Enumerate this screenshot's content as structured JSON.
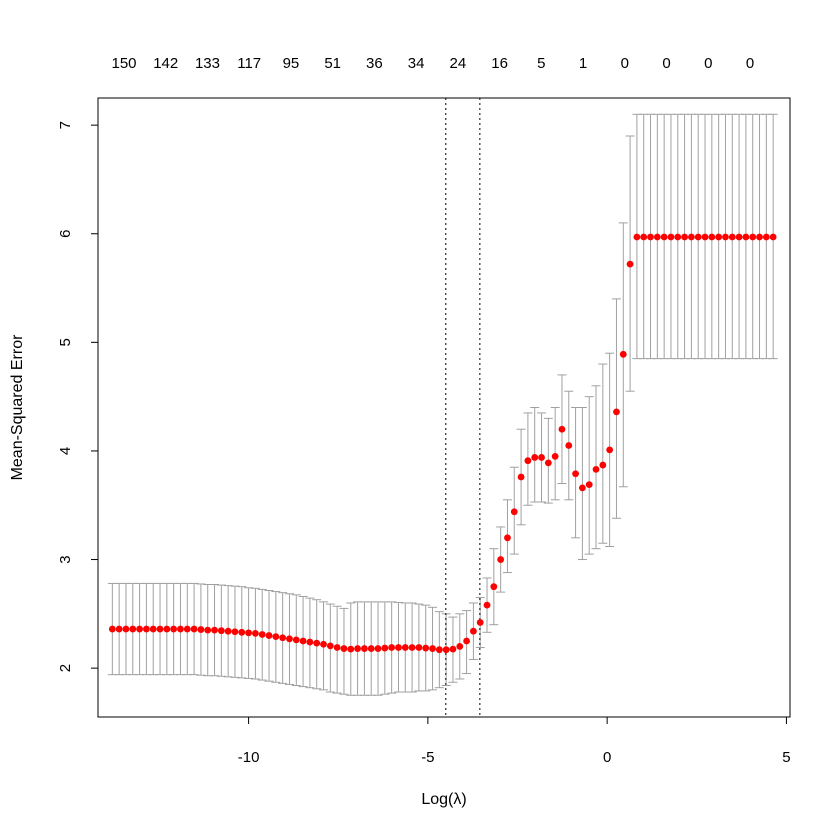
{
  "chart_data": {
    "type": "scatter",
    "xlabel": "Log(λ)",
    "ylabel": "Mean-Squared Error",
    "xlim": [
      -14.2,
      5.1
    ],
    "ylim": [
      1.55,
      7.25
    ],
    "x_ticks": [
      -10,
      -5,
      0,
      5
    ],
    "y_ticks": [
      2,
      3,
      4,
      5,
      6,
      7
    ],
    "x_tick_labels": [
      "-10",
      "-5",
      "0",
      "5"
    ],
    "y_tick_labels": [
      "2",
      "3",
      "4",
      "5",
      "6",
      "7"
    ],
    "top_labels": {
      "x": [
        -13.75,
        -11.85,
        -9.95,
        -8.05,
        -6.15,
        -4.25,
        -2.35,
        -0.45,
        1.45,
        3.35,
        4.3,
        5.25,
        6.2,
        7.15,
        8.1,
        9.05
      ],
      "labels": [
        "150",
        "142",
        "133",
        "117",
        "95",
        "51",
        "36",
        "34",
        "24",
        "16",
        "5",
        "1",
        "0",
        "0",
        "0",
        "0"
      ]
    },
    "vlines": [
      -4.5,
      -3.55
    ],
    "points_color": "#ff0000",
    "errorbar_color": "#a0a0a0",
    "x": [
      -13.8,
      -13.61,
      -13.42,
      -13.23,
      -13.04,
      -12.85,
      -12.66,
      -12.47,
      -12.28,
      -12.09,
      -11.9,
      -11.71,
      -11.52,
      -11.33,
      -11.14,
      -10.95,
      -10.76,
      -10.57,
      -10.38,
      -10.19,
      -10.0,
      -9.81,
      -9.62,
      -9.43,
      -9.24,
      -9.05,
      -8.86,
      -8.67,
      -8.48,
      -8.29,
      -8.1,
      -7.91,
      -7.72,
      -7.53,
      -7.34,
      -7.15,
      -6.96,
      -6.77,
      -6.58,
      -6.39,
      -6.2,
      -6.01,
      -5.82,
      -5.63,
      -5.44,
      -5.25,
      -5.06,
      -4.87,
      -4.68,
      -4.49,
      -4.3,
      -4.11,
      -3.92,
      -3.73,
      -3.54,
      -3.35,
      -3.16,
      -2.97,
      -2.78,
      -2.59,
      -2.4,
      -2.21,
      -2.02,
      -1.83,
      -1.64,
      -1.45,
      -1.26,
      -1.07,
      -0.88,
      -0.69,
      -0.5,
      -0.31,
      -0.12,
      0.07,
      0.26,
      0.45,
      0.64,
      0.83,
      1.02,
      1.21,
      1.4,
      1.59,
      1.78,
      1.97,
      2.16,
      2.35,
      2.54,
      2.73,
      2.92,
      3.11,
      3.3,
      3.49,
      3.68,
      3.87,
      4.06,
      4.25,
      4.44,
      4.63
    ],
    "y": [
      2.36,
      2.36,
      2.36,
      2.36,
      2.36,
      2.36,
      2.36,
      2.36,
      2.36,
      2.36,
      2.36,
      2.36,
      2.36,
      2.355,
      2.35,
      2.35,
      2.345,
      2.34,
      2.335,
      2.33,
      2.325,
      2.32,
      2.31,
      2.3,
      2.29,
      2.28,
      2.27,
      2.26,
      2.25,
      2.24,
      2.23,
      2.22,
      2.205,
      2.19,
      2.18,
      2.175,
      2.18,
      2.18,
      2.18,
      2.18,
      2.185,
      2.19,
      2.19,
      2.19,
      2.19,
      2.19,
      2.185,
      2.18,
      2.17,
      2.17,
      2.175,
      2.2,
      2.25,
      2.34,
      2.42,
      2.58,
      2.75,
      3.0,
      3.2,
      3.44,
      3.76,
      3.91,
      3.94,
      3.94,
      3.89,
      3.95,
      4.2,
      4.05,
      3.79,
      3.66,
      3.69,
      3.83,
      3.87,
      4.01,
      4.36,
      4.89,
      5.72,
      5.97,
      5.97,
      5.97,
      5.97,
      5.97,
      5.97,
      5.97,
      5.97,
      5.97,
      5.97,
      5.97,
      5.97,
      5.97,
      5.97,
      5.97,
      5.97,
      5.97,
      5.97,
      5.97,
      5.97,
      5.97
    ],
    "y_upper": [
      2.78,
      2.78,
      2.78,
      2.78,
      2.78,
      2.78,
      2.78,
      2.78,
      2.78,
      2.78,
      2.78,
      2.78,
      2.78,
      2.775,
      2.77,
      2.77,
      2.765,
      2.76,
      2.755,
      2.75,
      2.74,
      2.735,
      2.725,
      2.715,
      2.705,
      2.695,
      2.685,
      2.675,
      2.66,
      2.645,
      2.63,
      2.61,
      2.59,
      2.57,
      2.55,
      2.6,
      2.61,
      2.61,
      2.61,
      2.61,
      2.61,
      2.61,
      2.605,
      2.6,
      2.6,
      2.59,
      2.58,
      2.56,
      2.52,
      2.5,
      2.47,
      2.5,
      2.53,
      2.6,
      2.65,
      2.83,
      3.1,
      3.3,
      3.55,
      3.85,
      4.2,
      4.35,
      4.4,
      4.35,
      4.3,
      4.4,
      4.7,
      4.55,
      4.4,
      4.4,
      4.5,
      4.6,
      4.8,
      4.9,
      5.4,
      6.1,
      6.9,
      7.1,
      7.1,
      7.1,
      7.1,
      7.1,
      7.1,
      7.1,
      7.1,
      7.1,
      7.1,
      7.1,
      7.1,
      7.1,
      7.1,
      7.1,
      7.1,
      7.1,
      7.1,
      7.1,
      7.1,
      7.1
    ],
    "y_lower": [
      1.94,
      1.94,
      1.94,
      1.94,
      1.94,
      1.94,
      1.94,
      1.94,
      1.94,
      1.94,
      1.94,
      1.94,
      1.94,
      1.935,
      1.93,
      1.93,
      1.925,
      1.92,
      1.915,
      1.91,
      1.905,
      1.9,
      1.89,
      1.88,
      1.87,
      1.86,
      1.85,
      1.84,
      1.83,
      1.82,
      1.81,
      1.8,
      1.78,
      1.77,
      1.76,
      1.75,
      1.75,
      1.75,
      1.75,
      1.75,
      1.76,
      1.77,
      1.78,
      1.78,
      1.78,
      1.79,
      1.79,
      1.8,
      1.82,
      1.84,
      1.87,
      1.9,
      1.95,
      2.08,
      2.19,
      2.33,
      2.4,
      2.7,
      2.88,
      3.05,
      3.32,
      3.5,
      3.53,
      3.53,
      3.52,
      3.55,
      3.7,
      3.55,
      3.2,
      3.0,
      3.05,
      3.1,
      3.15,
      3.12,
      3.38,
      3.67,
      4.55,
      4.85,
      4.85,
      4.85,
      4.85,
      4.85,
      4.85,
      4.85,
      4.85,
      4.85,
      4.85,
      4.85,
      4.85,
      4.85,
      4.85,
      4.85,
      4.85,
      4.85,
      4.85,
      4.85,
      4.85,
      4.85
    ]
  }
}
